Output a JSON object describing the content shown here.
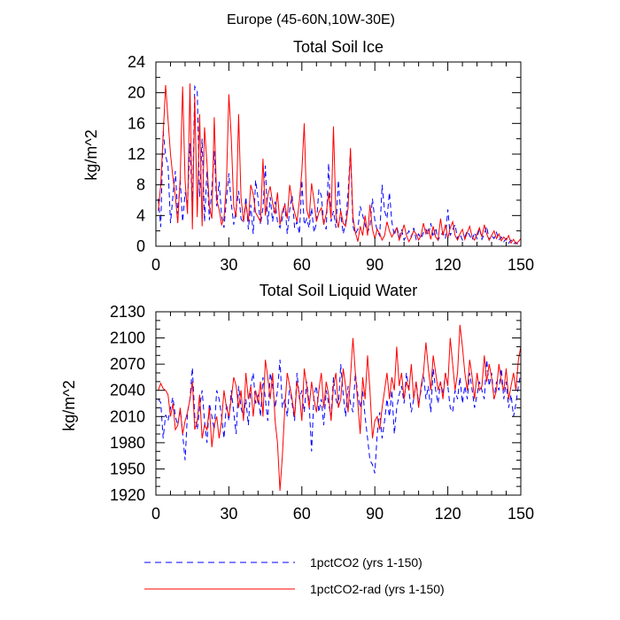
{
  "figure": {
    "suptitle": "Europe (45-60N,10W-30E)"
  },
  "colors": {
    "series_1": "#0000ff",
    "series_2": "#ff0000",
    "axes": "#000000"
  },
  "chart_data": [
    {
      "type": "line",
      "title": "Total Soil Ice",
      "xlabel": "",
      "ylabel": "kg/m^2",
      "xlim": [
        0,
        150
      ],
      "ylim": [
        0,
        24
      ],
      "xticks": [
        0,
        30,
        60,
        90,
        120,
        150
      ],
      "yticks": [
        0,
        4,
        8,
        12,
        16,
        20,
        24
      ],
      "grid": false,
      "x": [
        1,
        2,
        3,
        4,
        5,
        6,
        7,
        8,
        9,
        10,
        11,
        12,
        13,
        14,
        15,
        16,
        17,
        18,
        19,
        20,
        21,
        22,
        23,
        24,
        25,
        26,
        27,
        28,
        29,
        30,
        31,
        32,
        33,
        34,
        35,
        36,
        37,
        38,
        39,
        40,
        41,
        42,
        43,
        44,
        45,
        46,
        47,
        48,
        49,
        50,
        51,
        52,
        53,
        54,
        55,
        56,
        57,
        58,
        59,
        60,
        61,
        62,
        63,
        64,
        65,
        66,
        67,
        68,
        69,
        70,
        71,
        72,
        73,
        74,
        75,
        76,
        77,
        78,
        79,
        80,
        81,
        82,
        83,
        84,
        85,
        86,
        87,
        88,
        89,
        90,
        91,
        92,
        93,
        94,
        95,
        96,
        97,
        98,
        99,
        100,
        101,
        102,
        103,
        104,
        105,
        106,
        107,
        108,
        109,
        110,
        111,
        112,
        113,
        114,
        115,
        116,
        117,
        118,
        119,
        120,
        121,
        122,
        123,
        124,
        125,
        126,
        127,
        128,
        129,
        130,
        131,
        132,
        133,
        134,
        135,
        136,
        137,
        138,
        139,
        140,
        141,
        142,
        143,
        144,
        145,
        146,
        147,
        148,
        149,
        150
      ],
      "series": [
        {
          "name": "1pctCO2 (yrs 1-150)",
          "color": "#0000ff",
          "dash": "dashed",
          "values": [
            6.2,
            2.5,
            15.0,
            11.8,
            10.5,
            3.0,
            6.5,
            9.8,
            4.2,
            8.6,
            3.2,
            7.0,
            5.6,
            13.4,
            4.8,
            20.8,
            20.2,
            6.4,
            14.0,
            3.2,
            9.8,
            3.4,
            7.6,
            12.4,
            5.2,
            8.4,
            4.0,
            2.4,
            6.2,
            9.5,
            5.6,
            2.8,
            4.8,
            7.2,
            3.6,
            3.0,
            6.4,
            2.2,
            5.4,
            1.6,
            8.6,
            6.2,
            2.8,
            5.0,
            10.5,
            2.8,
            6.4,
            3.2,
            5.8,
            3.2,
            2.4,
            3.6,
            5.6,
            1.6,
            4.8,
            6.6,
            2.4,
            3.2,
            1.6,
            8.6,
            2.8,
            3.6,
            2.4,
            5.0,
            1.8,
            3.0,
            7.4,
            6.6,
            3.0,
            2.2,
            10.8,
            3.2,
            4.6,
            2.4,
            8.6,
            4.2,
            1.6,
            3.0,
            7.0,
            12.5,
            2.6,
            1.6,
            2.2,
            5.2,
            4.0,
            2.8,
            1.8,
            2.6,
            6.2,
            3.4,
            2.0,
            1.4,
            8.0,
            4.6,
            3.6,
            7.0,
            3.2,
            1.4,
            2.6,
            1.2,
            2.2,
            0.8,
            1.4,
            2.0,
            1.2,
            2.4,
            0.9,
            1.6,
            1.0,
            1.8,
            2.2,
            1.4,
            3.0,
            1.2,
            2.4,
            0.8,
            1.4,
            1.8,
            1.0,
            4.8,
            1.4,
            2.2,
            2.8,
            1.0,
            1.6,
            0.8,
            1.2,
            2.0,
            1.4,
            0.8,
            1.8,
            1.0,
            2.4,
            0.9,
            1.6,
            2.6,
            0.8,
            1.4,
            1.0,
            1.8,
            0.8,
            1.2,
            0.6,
            1.0,
            0.4,
            0.8,
            0.3,
            0.5,
            0.2,
            0.4
          ]
        },
        {
          "name": "1pctCO2-rad (yrs 1-150)",
          "color": "#ff0000",
          "dash": "solid",
          "values": [
            4.6,
            8.0,
            14.5,
            21.0,
            16.5,
            12.0,
            9.0,
            6.5,
            3.0,
            9.0,
            20.8,
            8.5,
            4.2,
            21.2,
            2.2,
            19.5,
            3.8,
            17.2,
            2.6,
            15.5,
            10.8,
            5.2,
            3.6,
            16.8,
            6.0,
            4.8,
            2.8,
            3.6,
            8.4,
            19.8,
            14.2,
            5.2,
            3.8,
            17.2,
            6.4,
            3.2,
            5.6,
            3.2,
            8.0,
            6.8,
            4.4,
            3.8,
            3.2,
            11.4,
            4.0,
            6.6,
            7.8,
            5.6,
            4.2,
            7.0,
            2.8,
            4.6,
            5.4,
            3.6,
            8.0,
            5.8,
            4.4,
            3.2,
            6.0,
            9.8,
            16.0,
            4.8,
            3.6,
            8.2,
            6.0,
            3.2,
            4.4,
            5.0,
            2.8,
            4.2,
            7.0,
            3.6,
            15.6,
            4.0,
            2.4,
            4.6,
            3.0,
            2.6,
            5.0,
            12.8,
            3.8,
            1.8,
            0.6,
            2.6,
            1.4,
            4.0,
            1.4,
            5.4,
            2.2,
            1.0,
            2.2,
            1.6,
            0.8,
            1.4,
            3.2,
            2.0,
            1.2,
            1.8,
            2.4,
            0.8,
            1.6,
            2.8,
            1.4,
            0.6,
            1.2,
            2.0,
            1.6,
            0.8,
            1.4,
            3.0,
            1.6,
            2.2,
            0.9,
            2.6,
            1.2,
            0.8,
            3.6,
            1.4,
            2.8,
            1.0,
            2.4,
            3.2,
            1.4,
            0.8,
            1.6,
            2.2,
            0.9,
            1.8,
            2.6,
            1.2,
            0.8,
            1.6,
            2.4,
            1.2,
            2.8,
            1.6,
            0.8,
            1.4,
            2.0,
            1.0,
            1.6,
            0.7,
            1.2,
            0.8,
            1.4,
            0.4,
            0.9,
            0.3,
            0.6,
            1.0
          ]
        }
      ]
    },
    {
      "type": "line",
      "title": "Total Soil Liquid Water",
      "xlabel": "",
      "ylabel": "kg/m^2",
      "xlim": [
        0,
        150
      ],
      "ylim": [
        1920,
        2130
      ],
      "xticks": [
        0,
        30,
        60,
        90,
        120,
        150
      ],
      "yticks": [
        1920,
        1950,
        1980,
        2010,
        2040,
        2070,
        2100,
        2130
      ],
      "grid": false,
      "x": [
        1,
        2,
        3,
        4,
        5,
        6,
        7,
        8,
        9,
        10,
        11,
        12,
        13,
        14,
        15,
        16,
        17,
        18,
        19,
        20,
        21,
        22,
        23,
        24,
        25,
        26,
        27,
        28,
        29,
        30,
        31,
        32,
        33,
        34,
        35,
        36,
        37,
        38,
        39,
        40,
        41,
        42,
        43,
        44,
        45,
        46,
        47,
        48,
        49,
        50,
        51,
        52,
        53,
        54,
        55,
        56,
        57,
        58,
        59,
        60,
        61,
        62,
        63,
        64,
        65,
        66,
        67,
        68,
        69,
        70,
        71,
        72,
        73,
        74,
        75,
        76,
        77,
        78,
        79,
        80,
        81,
        82,
        83,
        84,
        85,
        86,
        87,
        88,
        89,
        90,
        91,
        92,
        93,
        94,
        95,
        96,
        97,
        98,
        99,
        100,
        101,
        102,
        103,
        104,
        105,
        106,
        107,
        108,
        109,
        110,
        111,
        112,
        113,
        114,
        115,
        116,
        117,
        118,
        119,
        120,
        121,
        122,
        123,
        124,
        125,
        126,
        127,
        128,
        129,
        130,
        131,
        132,
        133,
        134,
        135,
        136,
        137,
        138,
        139,
        140,
        141,
        142,
        143,
        144,
        145,
        146,
        147,
        148,
        149,
        150
      ],
      "series": [
        {
          "name": "1pctCO2 (yrs 1-150)",
          "color": "#0000ff",
          "dash": "dashed",
          "values": [
            2030,
            2026,
            1985,
            2012,
            2005,
            2020,
            2032,
            2010,
            2000,
            2018,
            1990,
            1960,
            2015,
            2030,
            2066,
            2010,
            1995,
            2020,
            2040,
            2005,
            1980,
            2025,
            2010,
            1995,
            2040,
            2030,
            2010,
            1985,
            2025,
            2005,
            2040,
            2015,
            1990,
            2045,
            2020,
            2010,
            2030,
            2000,
            2045,
            2060,
            2025,
            2035,
            2010,
            2055,
            2030,
            2005,
            2060,
            2045,
            2020,
            2040,
            2075,
            2020,
            2030,
            2010,
            2045,
            2025,
            2005,
            2060,
            2030,
            2040,
            2015,
            2050,
            2025,
            1970,
            2035,
            2045,
            2015,
            2030,
            2000,
            2040,
            2025,
            2010,
            2055,
            2030,
            2020,
            2070,
            2035,
            2010,
            2045,
            2025,
            2015,
            2060,
            2035,
            2020,
            2040,
            2010,
            1985,
            1960,
            1955,
            1945,
            1990,
            2015,
            1985,
            2005,
            2030,
            2010,
            2040,
            1990,
            2020,
            2035,
            2045,
            2025,
            2060,
            2040,
            2015,
            2030,
            2050,
            2025,
            2040,
            2060,
            2030,
            2045,
            2015,
            2065,
            2040,
            2025,
            2050,
            2035,
            2060,
            2045,
            2020,
            2015,
            2040,
            2030,
            2055,
            2025,
            2045,
            2030,
            2060,
            2040,
            2020,
            2035,
            2050,
            2040,
            2030,
            2075,
            2045,
            2060,
            2030,
            2050,
            2040,
            2065,
            2030,
            2050,
            2020,
            2035,
            2010,
            2025,
            2045,
            2060
          ]
        },
        {
          "name": "1pctCO2-rad (yrs 1-150)",
          "color": "#ff0000",
          "dash": "solid",
          "values": [
            2040,
            2048,
            2042,
            2040,
            2035,
            2010,
            2025,
            1995,
            2000,
            2020,
            1990,
            2005,
            2015,
            2030,
            2050,
            1995,
            2005,
            2035,
            1985,
            2000,
            1995,
            2020,
            1975,
            2000,
            2010,
            1985,
            2005,
            2040,
            2020,
            2010,
            2030,
            2055,
            2045,
            2020,
            2040,
            2005,
            2060,
            2030,
            2045,
            2010,
            2040,
            2025,
            2050,
            2010,
            2075,
            2055,
            2030,
            2060,
            2005,
            1980,
            1925,
            1965,
            2020,
            2060,
            2045,
            2030,
            2010,
            2050,
            2035,
            2005,
            2065,
            2045,
            2020,
            2050,
            2030,
            2015,
            2040,
            2060,
            2020,
            2050,
            2035,
            2005,
            2045,
            2060,
            2020,
            2030,
            2065,
            2045,
            2015,
            2055,
            2100,
            2060,
            2025,
            1990,
            2055,
            2030,
            2080,
            2040,
            1985,
            2005,
            2010,
            1995,
            2020,
            2040,
            2060,
            2030,
            2055,
            2040,
            2090,
            2045,
            2060,
            2030,
            2050,
            2040,
            2070,
            2030,
            2050,
            2020,
            2045,
            2060,
            2095,
            2065,
            2040,
            2080,
            2060,
            2040,
            2050,
            2030,
            2060,
            2045,
            2100,
            2070,
            2040,
            2060,
            2115,
            2090,
            2060,
            2040,
            2075,
            2055,
            2030,
            2060,
            2040,
            2045,
            2080,
            2050,
            2070,
            2055,
            2030,
            2040,
            2070,
            2050,
            2040,
            2065,
            2030,
            2045,
            2060,
            2040,
            2075,
            2090
          ]
        }
      ]
    }
  ]
}
